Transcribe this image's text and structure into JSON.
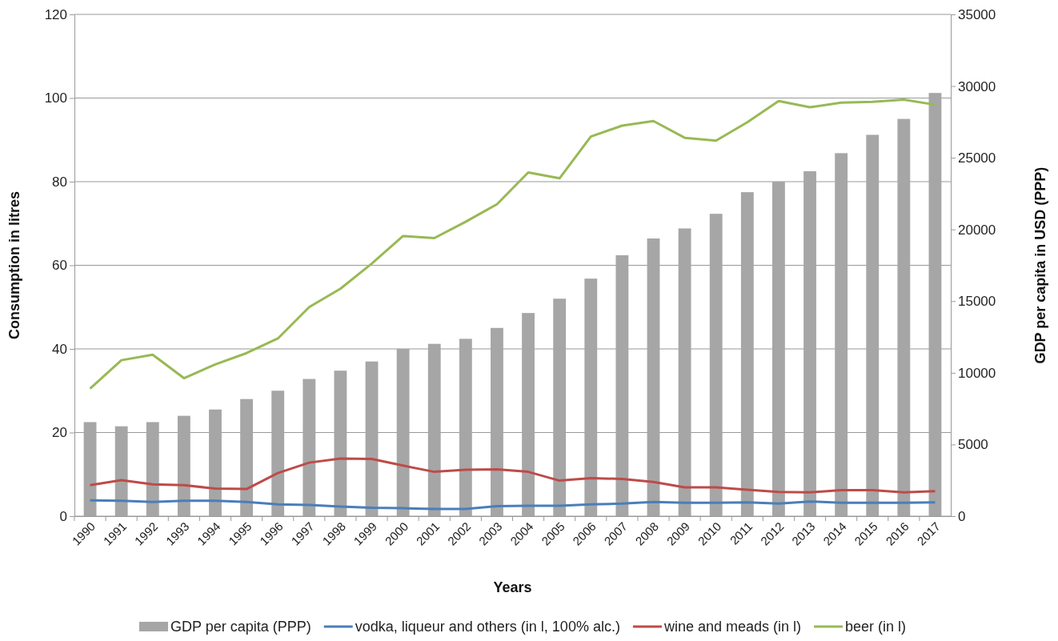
{
  "chart_data": {
    "type": "bar",
    "xlabel": "Years",
    "ylabel": "Consumption in litres",
    "y2label": "GDP per capita in USD (PPP)",
    "categories": [
      "1990",
      "1991",
      "1992",
      "1993",
      "1994",
      "1995",
      "1996",
      "1997",
      "1998",
      "1999",
      "2000",
      "2001",
      "2002",
      "2003",
      "2004",
      "2005",
      "2006",
      "2007",
      "2008",
      "2009",
      "2010",
      "2011",
      "2012",
      "2013",
      "2014",
      "2015",
      "2016",
      "2017"
    ],
    "series": [
      {
        "name": "GDP per capita (PPP)",
        "axis": "y2",
        "color": "#a6a6a6",
        "values": [
          6560,
          6270,
          6560,
          7000,
          7440,
          8170,
          8750,
          9570,
          10150,
          10790,
          11670,
          12020,
          12370,
          13130,
          14170,
          15170,
          16570,
          18200,
          19370,
          20070,
          21090,
          22600,
          23330,
          24060,
          25320,
          26600,
          27710,
          29520
        ]
      },
      {
        "name": "vodka, liqueur and others (in l, 100% alc.)",
        "type": "line",
        "color": "#4a7ebb",
        "values": [
          3.8,
          3.7,
          3.4,
          3.7,
          3.7,
          3.4,
          2.8,
          2.7,
          2.3,
          2.0,
          1.9,
          1.7,
          1.7,
          2.4,
          2.5,
          2.5,
          2.8,
          3.0,
          3.4,
          3.2,
          3.2,
          3.3,
          3.0,
          3.5,
          3.2,
          3.2,
          3.2,
          3.3
        ]
      },
      {
        "name": "wine and meads (in l)",
        "type": "line",
        "color": "#be4b48",
        "values": [
          7.4,
          8.6,
          7.6,
          7.4,
          6.6,
          6.5,
          10.3,
          12.8,
          13.8,
          13.7,
          12.1,
          10.6,
          11.1,
          11.2,
          10.6,
          8.5,
          9.1,
          8.9,
          8.2,
          6.9,
          6.9,
          6.3,
          5.8,
          5.7,
          6.2,
          6.2,
          5.7,
          6.0
        ]
      },
      {
        "name": "beer (in l)",
        "type": "line",
        "color": "#98b954",
        "values": [
          30.5,
          37.3,
          38.6,
          33,
          36.3,
          39,
          42.5,
          50,
          54.4,
          60.4,
          67,
          66.5,
          70.4,
          74.6,
          82.2,
          80.8,
          90.8,
          93.4,
          94.5,
          90.5,
          89.8,
          94.2,
          99.3,
          97.8,
          98.9,
          99.1,
          99.6,
          98.4
        ]
      }
    ],
    "ylim": [
      0,
      120
    ],
    "yticks": [
      0,
      20,
      40,
      60,
      80,
      100,
      120
    ],
    "y2lim": [
      0,
      35000
    ],
    "y2ticks": [
      0,
      5000,
      10000,
      15000,
      20000,
      25000,
      30000,
      35000
    ],
    "grid": "y",
    "legend": "bottom",
    "marker": "none",
    "line_style": "solid"
  }
}
